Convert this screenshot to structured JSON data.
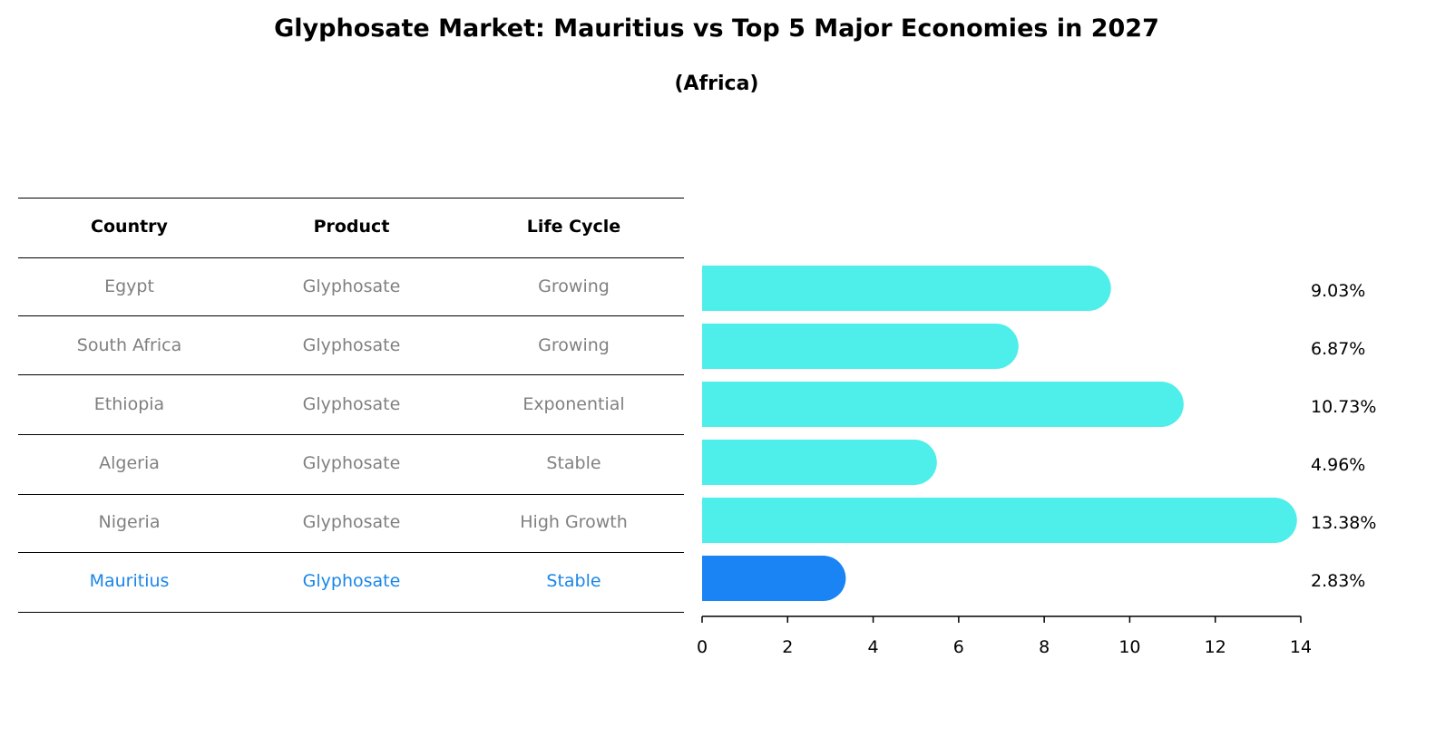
{
  "chart_data": {
    "type": "bar",
    "orientation": "horizontal",
    "title": "Glyphosate Market: Mauritius vs Top 5 Major Economies in 2027",
    "subtitle": "(Africa)",
    "categories": [
      "Egypt",
      "South Africa",
      "Ethiopia",
      "Algeria",
      "Nigeria",
      "Mauritius"
    ],
    "values": [
      9.03,
      6.87,
      10.73,
      4.96,
      13.38,
      2.83
    ],
    "value_labels": [
      "9.03%",
      "6.87%",
      "10.73%",
      "4.96%",
      "13.38%",
      "2.83%"
    ],
    "xlim": [
      0,
      14
    ],
    "xticks": [
      "0",
      "2",
      "4",
      "6",
      "8",
      "10",
      "12",
      "14"
    ],
    "xlabel": "",
    "ylabel": "",
    "colors": {
      "default": "#4eeeea",
      "highlight": "#1a84f5"
    },
    "highlight_index": 5
  },
  "table": {
    "headers": [
      "Country",
      "Product",
      "Life Cycle"
    ],
    "rows": [
      [
        "Egypt",
        "Glyphosate",
        "Growing"
      ],
      [
        "South Africa",
        "Glyphosate",
        "Growing"
      ],
      [
        "Ethiopia",
        "Glyphosate",
        "Exponential"
      ],
      [
        "Algeria",
        "Glyphosate",
        "Stable"
      ],
      [
        "Nigeria",
        "Glyphosate",
        "High Growth"
      ],
      [
        "Mauritius",
        "Glyphosate",
        "Stable"
      ]
    ]
  }
}
